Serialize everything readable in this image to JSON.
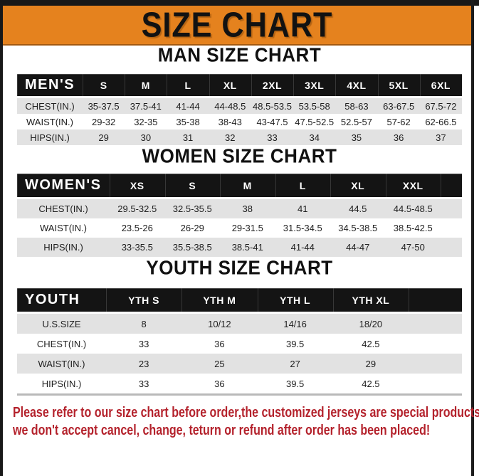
{
  "title": "SIZE CHART",
  "colors": {
    "banner_orange": "#E5821E",
    "frame_black": "#181818",
    "table_header_black": "#141414",
    "row_gray": "#E2E2E2",
    "note_red": "#B4222C"
  },
  "sections": [
    {
      "heading": "MAN SIZE CHART",
      "table": {
        "header_label": "MEN'S",
        "columns": [
          "S",
          "M",
          "L",
          "XL",
          "2XL",
          "3XL",
          "4XL",
          "5XL",
          "6XL"
        ],
        "label_col_width": 92,
        "spacer_width": 0,
        "bottom_edge": false,
        "rows": [
          {
            "label": "CHEST(IN.)",
            "shade": "gray",
            "values": [
              "35-37.5",
              "37.5-41",
              "41-44",
              "44-48.5",
              "48.5-53.5",
              "53.5-58",
              "58-63",
              "63-67.5",
              "67.5-72"
            ]
          },
          {
            "label": "WAIST(IN.)",
            "shade": "white",
            "values": [
              "29-32",
              "32-35",
              "35-38",
              "38-43",
              "43-47.5",
              "47.5-52.5",
              "52.5-57",
              "57-62",
              "62-66.5"
            ]
          },
          {
            "label": "HIPS(IN.)",
            "shade": "gray",
            "values": [
              "29",
              "30",
              "31",
              "32",
              "33",
              "34",
              "35",
              "36",
              "37"
            ]
          }
        ]
      }
    },
    {
      "heading": "WOMEN SIZE CHART",
      "table": {
        "header_label": "WOMEN'S",
        "columns": [
          "XS",
          "S",
          "M",
          "L",
          "XL",
          "XXL"
        ],
        "label_col_width": 130,
        "spacer_width": 30,
        "bottom_edge": false,
        "rows": [
          {
            "label": "CHEST(IN.)",
            "shade": "gray",
            "values": [
              "29.5-32.5",
              "32.5-35.5",
              "38",
              "41",
              "44.5",
              "44.5-48.5"
            ]
          },
          {
            "label": "WAIST(IN.)",
            "shade": "white",
            "values": [
              "23.5-26",
              "26-29",
              "29-31.5",
              "31.5-34.5",
              "34.5-38.5",
              "38.5-42.5"
            ]
          },
          {
            "label": "HIPS(IN.)",
            "shade": "gray",
            "values": [
              "33-35.5",
              "35.5-38.5",
              "38.5-41",
              "41-44",
              "44-47",
              "47-50"
            ]
          }
        ]
      }
    },
    {
      "heading": "YOUTH SIZE CHART",
      "table": {
        "header_label": "YOUTH",
        "columns": [
          "YTH S",
          "YTH M",
          "YTH L",
          "YTH XL"
        ],
        "label_col_width": 125,
        "spacer_width": 75,
        "bottom_edge": true,
        "rows": [
          {
            "label": "U.S.SIZE",
            "shade": "gray",
            "values": [
              "8",
              "10/12",
              "14/16",
              "18/20"
            ]
          },
          {
            "label": "CHEST(IN.)",
            "shade": "white",
            "values": [
              "33",
              "36",
              "39.5",
              "42.5"
            ]
          },
          {
            "label": "WAIST(IN.)",
            "shade": "gray",
            "values": [
              "23",
              "25",
              "27",
              "29"
            ]
          },
          {
            "label": "HIPS(IN.)",
            "shade": "white",
            "values": [
              "33",
              "36",
              "39.5",
              "42.5"
            ]
          }
        ]
      }
    }
  ],
  "note": {
    "line1": "Please refer to our size chart before order,the customized jerseys are special products,",
    "line2": "we don't accept cancel, change, teturn or refund after order has been placed!"
  }
}
